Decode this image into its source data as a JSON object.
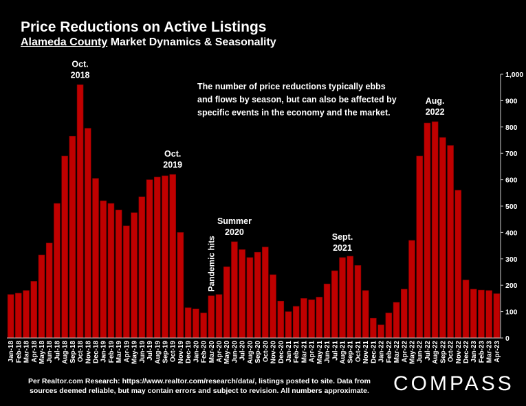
{
  "header": {
    "title": "Price Reductions on Active Listings",
    "subtitle_county": "Alameda County",
    "subtitle_rest": " Market Dynamics & Seasonality"
  },
  "footer": {
    "line1": "Per Realtor.com Research:  https://www.realtor.com/research/data/, listings posted to site. Data from",
    "line2": "sources deemed reliable, but may contain errors and subject to revision. All numbers approximate."
  },
  "logo": {
    "text": "COMPASS"
  },
  "colors": {
    "bar_fill": "#c00000",
    "bar_stroke": "#7a0000",
    "background": "#000000",
    "text": "#ffffff"
  },
  "chart_data": {
    "type": "bar",
    "title": "Price Reductions on Active Listings",
    "categories": [
      "Jan-18",
      "Feb-18",
      "Mar-18",
      "Apr-18",
      "May-18",
      "Jun-18",
      "Jul-18",
      "Aug-18",
      "Sep-18",
      "Oct-18",
      "Nov-18",
      "Dec-18",
      "Jan-19",
      "Feb-19",
      "Mar-19",
      "Apr-19",
      "May-19",
      "Jun-19",
      "Jul-19",
      "Aug-19",
      "Sep-19",
      "Oct-19",
      "Nov-19",
      "Dec-19",
      "Jan-20",
      "Feb-20",
      "Mar-20",
      "Apr-20",
      "May-20",
      "Jun-20",
      "Jul-20",
      "Aug-20",
      "Sep-20",
      "Oct-20",
      "Nov-20",
      "Dec-20",
      "Jan-21",
      "Feb-21",
      "Mar-21",
      "Apr-21",
      "May-21",
      "Jun-21",
      "Jul-21",
      "Aug-21",
      "Sep-21",
      "Oct-21",
      "Nov-21",
      "Dec-21",
      "Jan-22",
      "Feb-22",
      "Mar-22",
      "Apr-22",
      "May-22",
      "Jun-22",
      "Jul-22",
      "Aug-22",
      "Sep-22",
      "Oct-22",
      "Nov-22",
      "Dec-22",
      "Jan-23",
      "Feb-23",
      "Mar-23",
      "Apr-23"
    ],
    "values": [
      165,
      170,
      180,
      215,
      315,
      360,
      510,
      690,
      765,
      960,
      795,
      605,
      520,
      510,
      485,
      425,
      475,
      535,
      600,
      610,
      615,
      620,
      400,
      115,
      110,
      95,
      160,
      165,
      270,
      365,
      335,
      305,
      325,
      345,
      240,
      140,
      100,
      120,
      150,
      145,
      155,
      205,
      255,
      305,
      310,
      275,
      180,
      75,
      50,
      95,
      135,
      185,
      370,
      690,
      815,
      820,
      760,
      730,
      560,
      220,
      185,
      182,
      180,
      168
    ],
    "ylim": [
      0,
      1000
    ],
    "yticks": [
      0,
      100,
      200,
      300,
      400,
      500,
      600,
      700,
      800,
      900,
      1000
    ],
    "ytick_labels": [
      "0",
      "100",
      "200",
      "300",
      "400",
      "500",
      "600",
      "700",
      "800",
      "900",
      "1,000"
    ],
    "y_axis_side": "right",
    "grid": false,
    "annotations": [
      {
        "text_lines": [
          "Oct.",
          "2018"
        ],
        "category": "Oct-18"
      },
      {
        "text_lines": [
          "Oct.",
          "2019"
        ],
        "category": "Oct-19"
      },
      {
        "text_lines": [
          "Summer",
          "2020"
        ],
        "category": "Jun-20"
      },
      {
        "text_lines": [
          "Sept.",
          "2021"
        ],
        "category": "Aug-21"
      },
      {
        "text_lines": [
          "Aug.",
          "2022"
        ],
        "category": "Aug-22"
      },
      {
        "text_lines": [
          "Pandemic hits"
        ],
        "category": "Mar-20",
        "vertical": true
      }
    ],
    "note_lines": [
      "The number of price reductions typically ebbs",
      "and flows by season, but can also be affected by",
      "specific events in the economy and the market."
    ]
  }
}
